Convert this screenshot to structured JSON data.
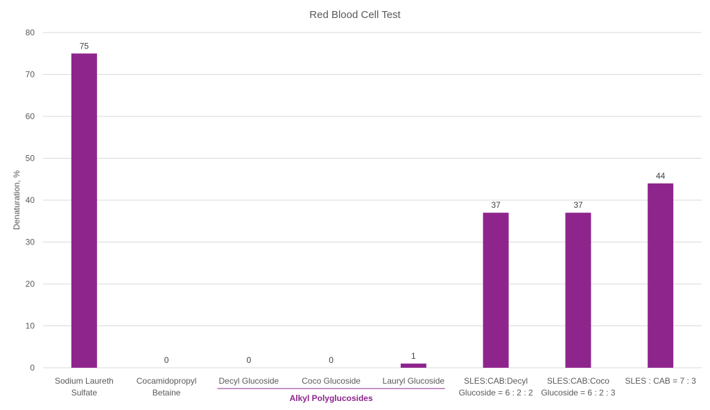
{
  "colors": {
    "bar": "#8e258d",
    "group_label": "#8e258d",
    "grid": "#d9d9d9",
    "text": "#595959"
  },
  "chart_data": {
    "type": "bar",
    "title": "Red Blood Cell Test",
    "ylabel": "Denaturation, %",
    "xlabel": "",
    "ylim": [
      0,
      80
    ],
    "yticks": [
      0,
      10,
      20,
      30,
      40,
      50,
      60,
      70,
      80
    ],
    "grid": true,
    "categories": [
      [
        "Sodium Laureth",
        "Sulfate"
      ],
      [
        "Cocamidopropyl",
        "Betaine"
      ],
      [
        "Decyl Glucoside"
      ],
      [
        "Coco Glucoside"
      ],
      [
        "Lauryl Glucoside"
      ],
      [
        "SLES:CAB:Decyl",
        "Glucoside = 6 : 2 : 2"
      ],
      [
        "SLES:CAB:Coco",
        "Glucoside = 6 : 2 : 3"
      ],
      [
        "SLES : CAB =  7 : 3"
      ]
    ],
    "values": [
      75,
      0,
      0,
      0,
      1,
      37,
      37,
      44
    ],
    "group": {
      "label": "Alkyl Polyglucosides",
      "from_index": 2,
      "to_index": 4
    }
  }
}
